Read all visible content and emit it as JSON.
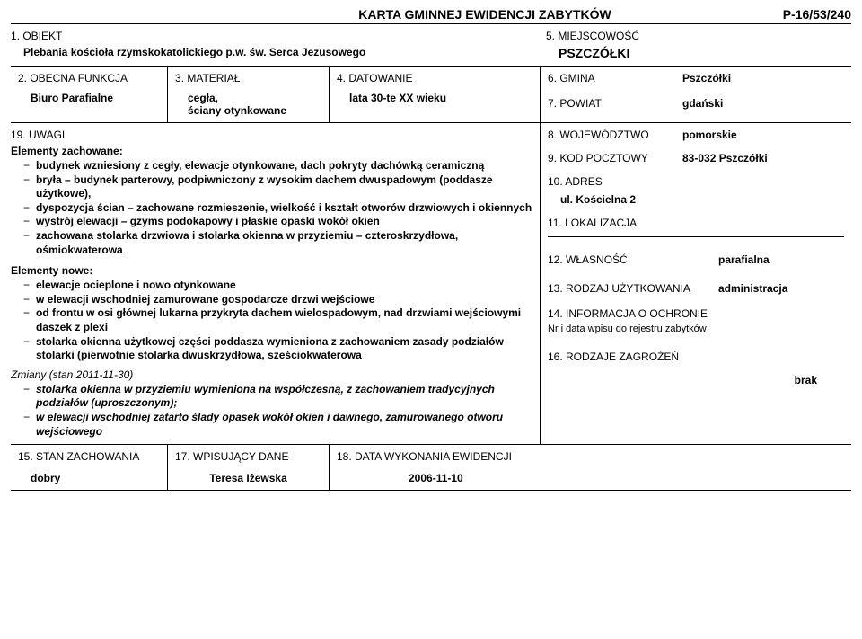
{
  "header": {
    "title": "KARTA GMINNEJ EWIDENCJI ZABYTKÓW",
    "code": "P-16/53/240"
  },
  "field1": {
    "label": "1. OBIEKT",
    "value": "Plebania kościoła rzymskokatolickiego p.w. św. Serca Jezusowego"
  },
  "field5": {
    "label": "5. MIEJSCOWOŚĆ",
    "value": "PSZCZÓŁKI"
  },
  "field2": {
    "label": "2. OBECNA FUNKCJA",
    "value": "Biuro Parafialne"
  },
  "field3": {
    "label": "3. MATERIAŁ",
    "value": "cegła,\nściany otynkowane"
  },
  "field4": {
    "label": "4. DATOWANIE",
    "value": "lata 30-te XX wieku"
  },
  "field6": {
    "label": "6. GMINA",
    "value": "Pszczółki"
  },
  "field7": {
    "label": "7. POWIAT",
    "value": "gdański"
  },
  "field8": {
    "label": "8. WOJEWÓDZTWO",
    "value": "pomorskie"
  },
  "field9": {
    "label": "9. KOD POCZTOWY",
    "value": "83-032 Pszczółki"
  },
  "field10": {
    "label": "10. ADRES",
    "value": "ul. Kościelna 2"
  },
  "field11": {
    "label": "11. LOKALIZACJA"
  },
  "field12": {
    "label": "12. WŁASNOŚĆ",
    "value": "parafialna"
  },
  "field13": {
    "label": "13. RODZAJ UŻYTKOWANIA",
    "value": "administracja"
  },
  "field14": {
    "label": "14. INFORMACJA O OCHRONIE",
    "sub": "Nr i data wpisu do rejestru zabytków"
  },
  "field16": {
    "label": "16. RODZAJE ZAGROŻEŃ",
    "value": "brak"
  },
  "field19": {
    "label": "19. UWAGI"
  },
  "uwagi": {
    "zachowane_title": "Elementy zachowane:",
    "zachowane": [
      "budynek wzniesiony z cegły, elewacje otynkowane, dach pokryty dachówką ceramiczną",
      "bryła – budynek parterowy, podpiwniczony z wysokim dachem dwuspadowym (poddasze użytkowe),",
      "dyspozycja ścian – zachowane rozmieszenie, wielkość i kształt otworów drzwiowych i okiennych",
      "wystrój elewacji – gzyms podokapowy i płaskie opaski wokół okien",
      "zachowana stolarka drzwiowa i stolarka okienna w przyziemiu – czteroskrzydłowa, ośmiokwaterowa"
    ],
    "nowe_title": "Elementy nowe:",
    "nowe": [
      "elewacje ocieplone i nowo otynkowane",
      "w elewacji wschodniej zamurowane gospodarcze drzwi wejściowe",
      "od frontu w osi głównej lukarna przykryta dachem wielospadowym, nad drzwiami wejściowymi daszek z plexi",
      "stolarka okienna użytkowej części poddasza wymieniona z zachowaniem zasady podziałów stolarki (pierwotnie stolarka dwuskrzydłowa, sześciokwaterowa"
    ],
    "zmiany_title": "Zmiany (stan 2011-11-30)",
    "zmiany": [
      "stolarka okienna w przyziemiu wymieniona na współczesną, z zachowaniem tradycyjnych podziałów (uproszczonym);",
      "w elewacji wschodniej zatarto ślady opasek wokół okien i dawnego, zamurowanego otworu wejściowego"
    ]
  },
  "field15": {
    "label": "15. STAN ZACHOWANIA",
    "value": "dobry"
  },
  "field17": {
    "label": "17. WPISUJĄCY DANE",
    "value": "Teresa Iżewska"
  },
  "field18": {
    "label": "18. DATA WYKONANIA EWIDENCJI",
    "value": "2006-11-10"
  }
}
